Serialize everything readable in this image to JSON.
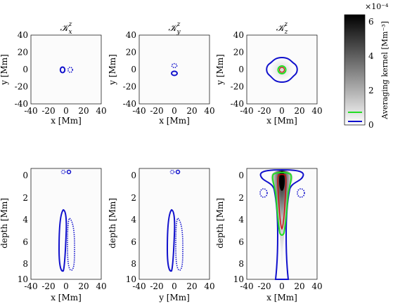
{
  "figure": {
    "panels": [
      {
        "id": "top-left",
        "title_main": "𝒦",
        "title_sub": "x",
        "title_sup": "z",
        "xlabel": "x [Mm]",
        "ylabel": "y [Mm]"
      },
      {
        "id": "top-middle",
        "title_main": "𝒦",
        "title_sub": "y",
        "title_sup": "z",
        "xlabel": "x [Mm]",
        "ylabel": "y [Mm]"
      },
      {
        "id": "top-right",
        "title_main": "𝒦",
        "title_sub": "z",
        "title_sup": "z",
        "xlabel": "x [Mm]",
        "ylabel": "y [Mm]"
      },
      {
        "id": "bottom-left",
        "xlabel": "x [Mm]",
        "ylabel": "depth [Mm]"
      },
      {
        "id": "bottom-middle",
        "xlabel": "y [Mm]",
        "ylabel": "depth [Mm]"
      },
      {
        "id": "bottom-right",
        "xlabel": "x [Mm]",
        "ylabel": "depth [Mm]"
      }
    ],
    "colorbar": {
      "label": "Averaging kernel [Mm⁻³]",
      "exponent": "×10⁻⁴",
      "ticks": [
        "0",
        "2",
        "4",
        "6"
      ],
      "range": [
        0,
        6.4
      ],
      "legend_colors": [
        "#22dd22",
        "#1010cc"
      ]
    }
  },
  "chart_data": [
    {
      "type": "heatmap",
      "title": "K_x^z",
      "xlabel": "x [Mm]",
      "ylabel": "y [Mm]",
      "xlim": [
        -40,
        40
      ],
      "ylim": [
        -40,
        40
      ],
      "xticks": [
        "-40",
        "-20",
        "0",
        "20",
        "40"
      ],
      "yticks": [
        "40",
        "20",
        "0",
        "-20",
        "-40"
      ],
      "contours": [
        {
          "color": "#1010cc",
          "style": "solid",
          "center": [
            -4,
            0
          ]
        },
        {
          "color": "#1010cc",
          "style": "dotted",
          "center": [
            5,
            0
          ]
        }
      ]
    },
    {
      "type": "heatmap",
      "title": "K_y^z",
      "xlabel": "x [Mm]",
      "ylabel": "y [Mm]",
      "xlim": [
        -40,
        40
      ],
      "ylim": [
        -40,
        40
      ],
      "xticks": [
        "-40",
        "-20",
        "0",
        "20",
        "40"
      ],
      "yticks": [
        "40",
        "20",
        "0",
        "-20",
        "-40"
      ],
      "contours": [
        {
          "color": "#1010cc",
          "style": "dotted",
          "center": [
            0,
            4
          ]
        },
        {
          "color": "#1010cc",
          "style": "solid",
          "center": [
            0,
            -5
          ]
        }
      ]
    },
    {
      "type": "heatmap",
      "title": "K_z^z",
      "xlabel": "x [Mm]",
      "ylabel": "y [Mm]",
      "xlim": [
        -40,
        40
      ],
      "ylim": [
        -40,
        40
      ],
      "xticks": [
        "-40",
        "-20",
        "0",
        "20",
        "40"
      ],
      "yticks": [
        "40",
        "20",
        "0",
        "-20",
        "-40"
      ],
      "contours": [
        {
          "color": "#1010cc",
          "style": "solid",
          "center": [
            0,
            0
          ]
        },
        {
          "color": "#22dd22",
          "style": "solid",
          "center": [
            0,
            0
          ]
        },
        {
          "color": "#cc1010",
          "style": "solid",
          "center": [
            0,
            0
          ]
        }
      ]
    },
    {
      "type": "heatmap",
      "xlabel": "x [Mm]",
      "ylabel": "depth [Mm]",
      "xlim": [
        -40,
        40
      ],
      "ylim": [
        0,
        10
      ],
      "xticks": [
        "-40",
        "-20",
        "0",
        "20",
        "40"
      ],
      "yticks": [
        "0",
        "2",
        "4",
        "6",
        "8",
        "10"
      ],
      "contours": [
        {
          "color": "#1010cc",
          "style": "solid"
        },
        {
          "color": "#1010cc",
          "style": "dotted"
        }
      ]
    },
    {
      "type": "heatmap",
      "xlabel": "y [Mm]",
      "ylabel": "depth [Mm]",
      "xlim": [
        -40,
        40
      ],
      "ylim": [
        0,
        10
      ],
      "xticks": [
        "-40",
        "-20",
        "0",
        "20",
        "40"
      ],
      "yticks": [
        "0",
        "2",
        "4",
        "6",
        "8",
        "10"
      ],
      "contours": [
        {
          "color": "#1010cc",
          "style": "solid"
        },
        {
          "color": "#1010cc",
          "style": "dotted"
        }
      ]
    },
    {
      "type": "heatmap",
      "xlabel": "x [Mm]",
      "ylabel": "depth [Mm]",
      "xlim": [
        -40,
        40
      ],
      "ylim": [
        0,
        10
      ],
      "xticks": [
        "-40",
        "-20",
        "0",
        "20",
        "40"
      ],
      "yticks": [
        "0",
        "2",
        "4",
        "6",
        "8",
        "10"
      ],
      "contours": [
        {
          "color": "#1010cc",
          "style": "solid"
        },
        {
          "color": "#22dd22",
          "style": "solid"
        },
        {
          "color": "#cc1010",
          "style": "solid"
        },
        {
          "color": "#1010cc",
          "style": "dotted"
        }
      ]
    }
  ]
}
